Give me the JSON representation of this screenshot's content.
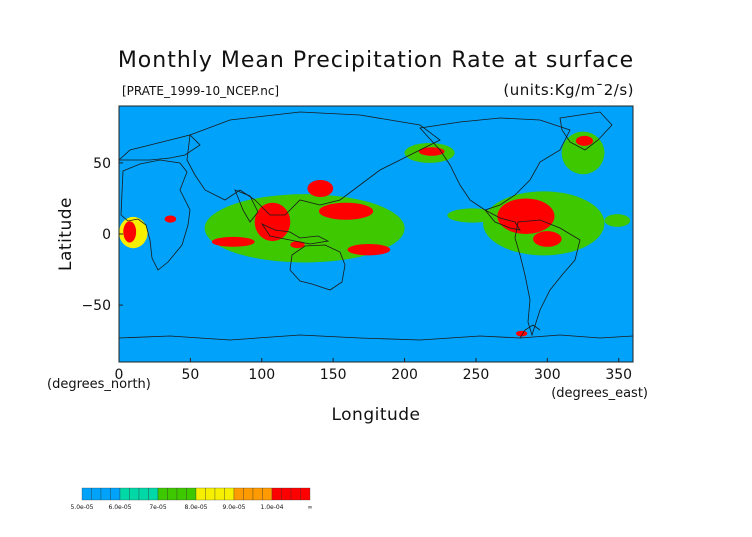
{
  "title": "Monthly Mean Precipitation Rate at surface",
  "file_label": "[PRATE_1999-10_NCEP.nc]",
  "units_label": "(units:Kg/m¯2/s)",
  "colors": {
    "ocean_background": "#00a2fa",
    "coastline": "#1a1a1a",
    "levels": [
      "#00a2fa",
      "#00d8a8",
      "#3ec800",
      "#f6f000",
      "#ff9a00",
      "#ff0000"
    ]
  },
  "chart_data": {
    "type": "heatmap",
    "title": "Monthly Mean Precipitation Rate at surface",
    "xlabel": "Longitude",
    "ylabel": "Latitude",
    "x_unit_note": "(degrees_east)",
    "y_unit_note": "(degrees_north)",
    "xlim": [
      0,
      360
    ],
    "ylim": [
      -90,
      90
    ],
    "x_ticks": [
      0,
      50,
      100,
      150,
      200,
      250,
      300,
      350
    ],
    "y_ticks": [
      50,
      0,
      -50
    ],
    "colorbar": {
      "levels": [
        "5.0e-05",
        "6.0e-05",
        "7e-05",
        "8.0e-05",
        "9.0e-05",
        "1.0e-04",
        "∞"
      ],
      "position": "bottom-left"
    },
    "regions": [
      {
        "lon": [
          3,
          12
        ],
        "lat": [
          9,
          -6
        ],
        "level": 5
      },
      {
        "lon": [
          32,
          40
        ],
        "lat": [
          13,
          8
        ],
        "level": 5
      },
      {
        "lon": [
          65,
          95
        ],
        "lat": [
          -2,
          -9
        ],
        "level": 5
      },
      {
        "lon": [
          95,
          120
        ],
        "lat": [
          22,
          -5
        ],
        "level": 5
      },
      {
        "lon": [
          120,
          130
        ],
        "lat": [
          -5,
          -10
        ],
        "level": 5
      },
      {
        "lon": [
          132,
          150
        ],
        "lat": [
          38,
          26
        ],
        "level": 5
      },
      {
        "lon": [
          140,
          178
        ],
        "lat": [
          22,
          10
        ],
        "level": 5
      },
      {
        "lon": [
          160,
          190
        ],
        "lat": [
          -7,
          -15
        ],
        "level": 5
      },
      {
        "lon": [
          210,
          228
        ],
        "lat": [
          61,
          55
        ],
        "level": 5
      },
      {
        "lon": [
          265,
          305
        ],
        "lat": [
          25,
          0
        ],
        "level": 5
      },
      {
        "lon": [
          290,
          310
        ],
        "lat": [
          2,
          -9
        ],
        "level": 5
      },
      {
        "lon": [
          320,
          332
        ],
        "lat": [
          69,
          62
        ],
        "level": 5
      },
      {
        "lon": [
          278,
          286
        ],
        "lat": [
          -68,
          -72
        ],
        "level": 5
      },
      {
        "lon": [
          0,
          20
        ],
        "lat": [
          12,
          -10
        ],
        "level": 3
      },
      {
        "lon": [
          60,
          200
        ],
        "lat": [
          28,
          -20
        ],
        "level": 2
      },
      {
        "lon": [
          255,
          340
        ],
        "lat": [
          30,
          -15
        ],
        "level": 2
      },
      {
        "lon": [
          200,
          235
        ],
        "lat": [
          64,
          50
        ],
        "level": 2
      },
      {
        "lon": [
          230,
          265
        ],
        "lat": [
          18,
          8
        ],
        "level": 2
      },
      {
        "lon": [
          310,
          340
        ],
        "lat": [
          72,
          42
        ],
        "level": 2
      },
      {
        "lon": [
          340,
          358
        ],
        "lat": [
          14,
          5
        ],
        "level": 2
      }
    ]
  }
}
